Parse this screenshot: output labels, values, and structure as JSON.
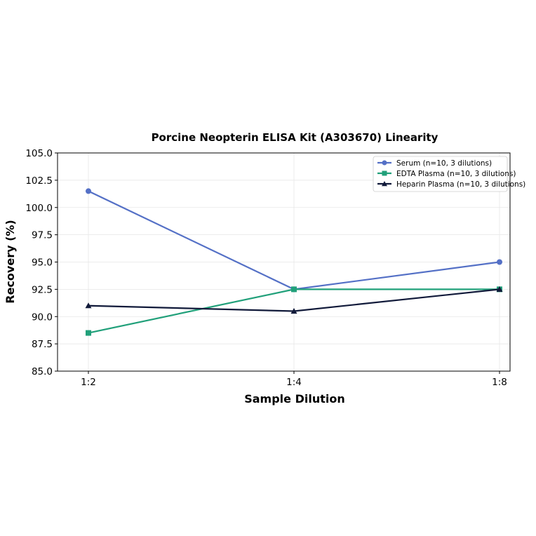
{
  "chart_data": {
    "type": "line",
    "title": "Porcine Neopterin ELISA Kit (A303670) Linearity",
    "xlabel": "Sample Dilution",
    "ylabel": "Recovery (%)",
    "categories": [
      "1:2",
      "1:4",
      "1:8"
    ],
    "ylim": [
      85.0,
      105.0
    ],
    "yticks": [
      "85.0",
      "87.5",
      "90.0",
      "92.5",
      "95.0",
      "97.5",
      "100.0",
      "102.5",
      "105.0"
    ],
    "grid": true,
    "legend_position": "top-right",
    "series": [
      {
        "name": "Serum (n=10, 3 dilutions)",
        "values": [
          101.5,
          92.5,
          95.0
        ],
        "color": "#5470c6",
        "marker": "circle"
      },
      {
        "name": "EDTA Plasma (n=10, 3 dilutions)",
        "values": [
          88.5,
          92.5,
          92.5
        ],
        "color": "#21a07a",
        "marker": "square"
      },
      {
        "name": "Heparin Plasma (n=10, 3 dilutions)",
        "values": [
          91.0,
          90.5,
          92.5
        ],
        "color": "#111a3a",
        "marker": "triangle"
      }
    ]
  }
}
